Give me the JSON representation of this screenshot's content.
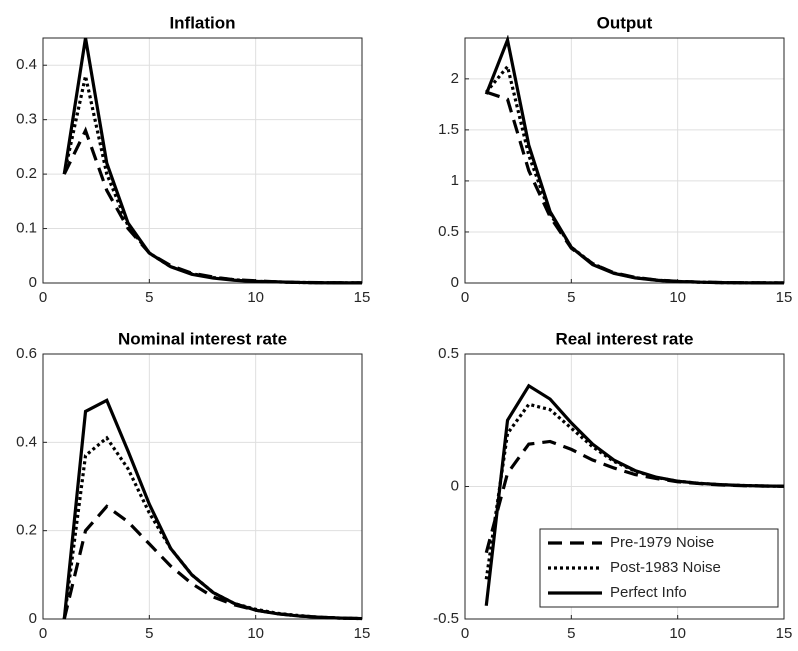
{
  "chart_data": [
    {
      "type": "line",
      "title": "Inflation",
      "x": [
        1,
        2,
        3,
        4,
        5,
        6,
        7,
        8,
        9,
        10,
        11,
        12,
        13,
        14,
        15
      ],
      "xlim": [
        0,
        15
      ],
      "xticks": [
        0,
        5,
        10,
        15
      ],
      "ylim": [
        0,
        0.45
      ],
      "yticks": [
        0,
        0.1,
        0.2,
        0.3,
        0.4
      ],
      "grid": true,
      "series": [
        {
          "name": "Pre-1979 Noise",
          "color": "#000000",
          "linestyle": "dashed",
          "values": [
            0.2,
            0.28,
            0.17,
            0.1,
            0.055,
            0.032,
            0.018,
            0.011,
            0.006,
            0.004,
            0.002,
            0.001,
            0.0007,
            0.0004,
            0.0002
          ]
        },
        {
          "name": "Post-1983 Noise",
          "color": "#000000",
          "linestyle": "dotted",
          "values": [
            0.2,
            0.38,
            0.2,
            0.105,
            0.055,
            0.03,
            0.017,
            0.01,
            0.006,
            0.003,
            0.002,
            0.001,
            0.0006,
            0.0003,
            0.0002
          ]
        },
        {
          "name": "Perfect Info",
          "color": "#000000",
          "linestyle": "solid",
          "values": [
            0.2,
            0.45,
            0.22,
            0.11,
            0.055,
            0.03,
            0.016,
            0.009,
            0.005,
            0.003,
            0.002,
            0.001,
            0.0005,
            0.0003,
            0.0002
          ]
        }
      ]
    },
    {
      "type": "line",
      "title": "Output",
      "x": [
        1,
        2,
        3,
        4,
        5,
        6,
        7,
        8,
        9,
        10,
        11,
        12,
        13,
        14,
        15
      ],
      "xlim": [
        0,
        15
      ],
      "xticks": [
        0,
        5,
        10,
        15
      ],
      "ylim": [
        0,
        2.4
      ],
      "yticks": [
        0,
        0.5,
        1,
        1.5,
        2
      ],
      "grid": true,
      "series": [
        {
          "name": "Pre-1979 Noise",
          "color": "#000000",
          "linestyle": "dashed",
          "values": [
            1.87,
            1.8,
            1.1,
            0.65,
            0.34,
            0.19,
            0.1,
            0.055,
            0.03,
            0.016,
            0.009,
            0.005,
            0.003,
            0.0015,
            0.0008
          ]
        },
        {
          "name": "Post-1983 Noise",
          "color": "#000000",
          "linestyle": "dotted",
          "values": [
            1.87,
            2.12,
            1.25,
            0.68,
            0.35,
            0.19,
            0.098,
            0.052,
            0.028,
            0.015,
            0.008,
            0.004,
            0.002,
            0.001,
            0.0005
          ]
        },
        {
          "name": "Perfect Info",
          "color": "#000000",
          "linestyle": "solid",
          "values": [
            1.85,
            2.38,
            1.35,
            0.7,
            0.35,
            0.18,
            0.095,
            0.05,
            0.027,
            0.015,
            0.008,
            0.004,
            0.002,
            0.001,
            0.0005
          ]
        }
      ]
    },
    {
      "type": "line",
      "title": "Nominal interest rate",
      "x": [
        1,
        2,
        3,
        4,
        5,
        6,
        7,
        8,
        9,
        10,
        11,
        12,
        13,
        14,
        15
      ],
      "xlim": [
        0,
        15
      ],
      "xticks": [
        0,
        5,
        10,
        15
      ],
      "ylim": [
        0,
        0.6
      ],
      "yticks": [
        0,
        0.2,
        0.4,
        0.6
      ],
      "grid": true,
      "series": [
        {
          "name": "Pre-1979 Noise",
          "color": "#000000",
          "linestyle": "dashed",
          "values": [
            0,
            0.2,
            0.255,
            0.22,
            0.17,
            0.12,
            0.08,
            0.05,
            0.032,
            0.02,
            0.012,
            0.007,
            0.004,
            0.002,
            0.001
          ]
        },
        {
          "name": "Post-1983 Noise",
          "color": "#000000",
          "linestyle": "dotted",
          "values": [
            0,
            0.37,
            0.41,
            0.34,
            0.24,
            0.16,
            0.1,
            0.06,
            0.035,
            0.022,
            0.013,
            0.008,
            0.004,
            0.002,
            0.001
          ]
        },
        {
          "name": "Perfect Info",
          "color": "#000000",
          "linestyle": "solid",
          "values": [
            0,
            0.47,
            0.495,
            0.38,
            0.26,
            0.16,
            0.1,
            0.06,
            0.035,
            0.02,
            0.012,
            0.007,
            0.004,
            0.002,
            0.001
          ]
        }
      ]
    },
    {
      "type": "line",
      "title": "Real interest rate",
      "x": [
        1,
        2,
        3,
        4,
        5,
        6,
        7,
        8,
        9,
        10,
        11,
        12,
        13,
        14,
        15
      ],
      "xlim": [
        0,
        15
      ],
      "xticks": [
        0,
        5,
        10,
        15
      ],
      "ylim": [
        -0.5,
        0.5
      ],
      "yticks": [
        -0.5,
        0,
        0.5
      ],
      "grid": true,
      "legend": "lower right",
      "series": [
        {
          "name": "Pre-1979 Noise",
          "color": "#000000",
          "linestyle": "dashed",
          "values": [
            -0.25,
            0.05,
            0.16,
            0.17,
            0.14,
            0.1,
            0.07,
            0.045,
            0.03,
            0.018,
            0.011,
            0.006,
            0.003,
            0.002,
            0.001
          ]
        },
        {
          "name": "Post-1983 Noise",
          "color": "#000000",
          "linestyle": "dotted",
          "values": [
            -0.35,
            0.2,
            0.31,
            0.29,
            0.22,
            0.15,
            0.095,
            0.058,
            0.034,
            0.02,
            0.012,
            0.007,
            0.004,
            0.002,
            0.001
          ]
        },
        {
          "name": "Perfect Info",
          "color": "#000000",
          "linestyle": "solid",
          "values": [
            -0.45,
            0.25,
            0.38,
            0.33,
            0.24,
            0.16,
            0.1,
            0.06,
            0.035,
            0.02,
            0.012,
            0.007,
            0.004,
            0.002,
            0.001
          ]
        }
      ]
    }
  ]
}
